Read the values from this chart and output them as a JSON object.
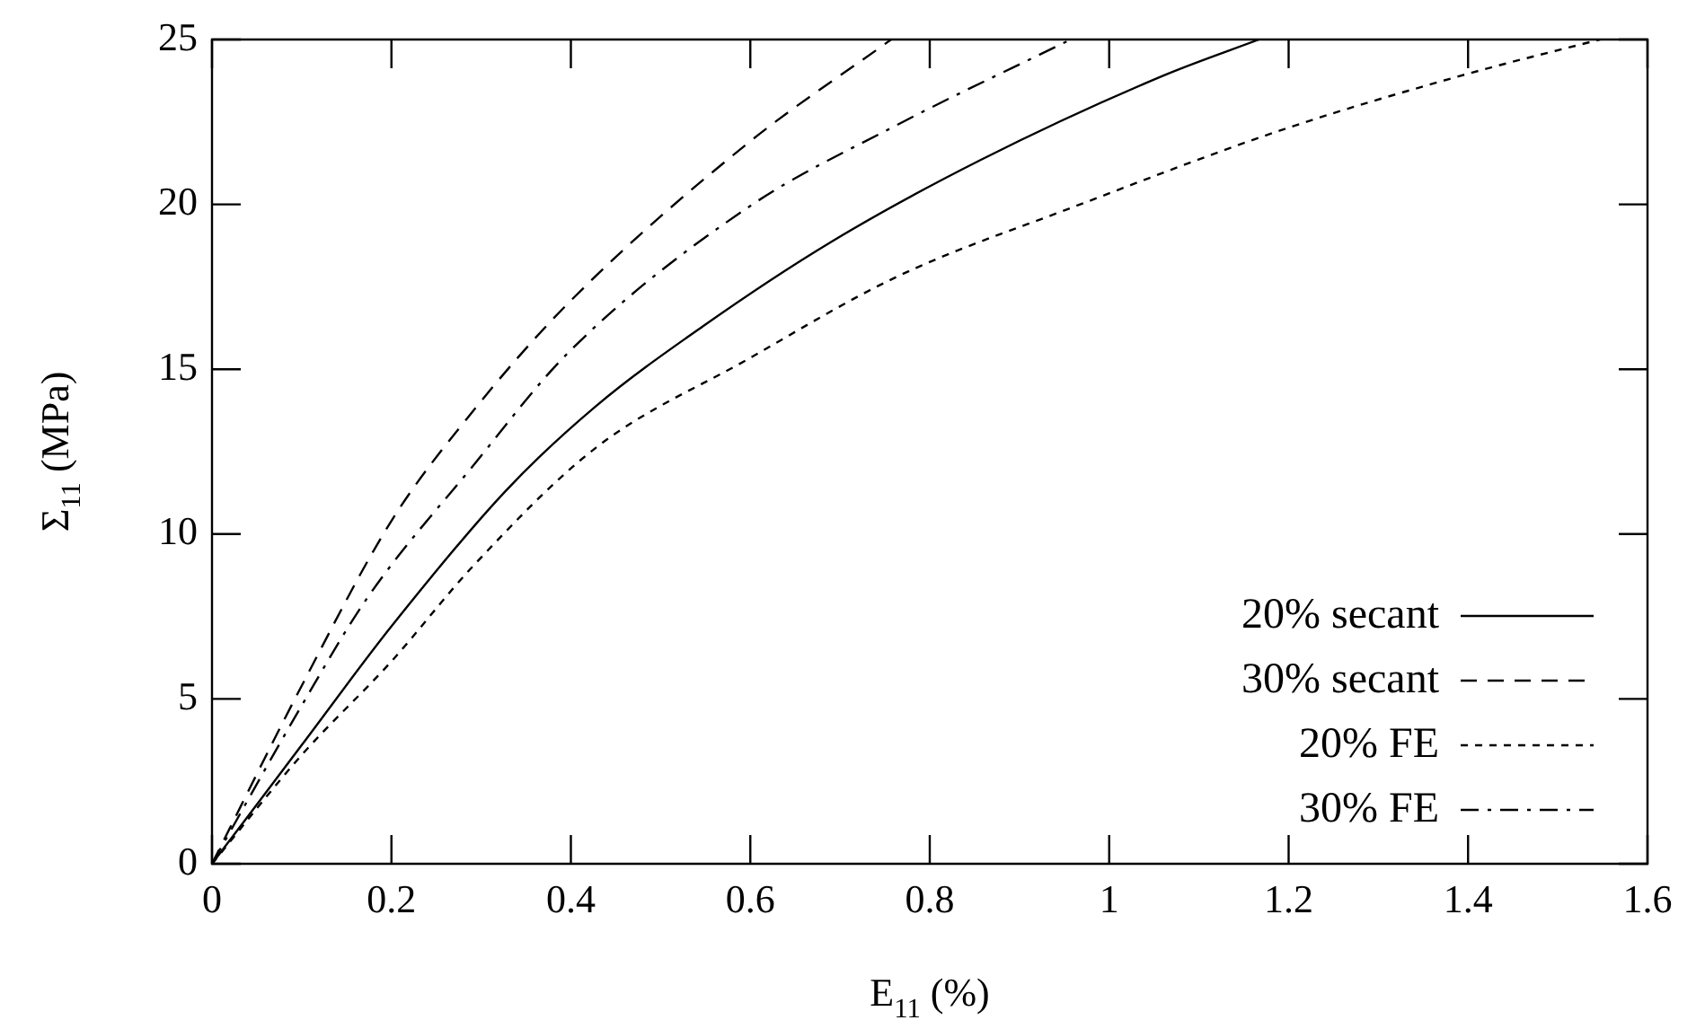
{
  "chart_data": {
    "type": "line",
    "xlabel": "E$_{11}$ (%)",
    "ylabel": "Σ$_{11}$ (MPa)",
    "xlim": [
      0,
      1.6
    ],
    "xticks": [
      0,
      0.2,
      0.4,
      0.6,
      0.8,
      1,
      1.2,
      1.4,
      1.6
    ],
    "ylim": [
      0,
      25
    ],
    "yticks": [
      0,
      5,
      10,
      15,
      20,
      25
    ],
    "grid": false,
    "legend": "bottom right",
    "marker": "none",
    "series": [
      {
        "name": "20% secant",
        "color": "#000000",
        "line_style": "solid",
        "x": [
          0,
          0.1,
          0.2,
          0.327,
          0.427,
          0.547,
          0.69,
          0.857,
          1.06,
          1.167
        ],
        "values": [
          0,
          3.6,
          7.2,
          11.3,
          13.86,
          16.3,
          18.86,
          21.35,
          23.9,
          25.0
        ]
      },
      {
        "name": "30% secant",
        "color": "#000000",
        "line_style": "dashed",
        "x": [
          0,
          0.1,
          0.2,
          0.29,
          0.397,
          0.597,
          0.757
        ],
        "values": [
          0,
          5.4,
          10.4,
          13.7,
          17.0,
          21.85,
          25.0
        ]
      },
      {
        "name": "20% FE",
        "color": "#000000",
        "line_style": "dotted",
        "x": [
          0,
          0.1,
          0.2,
          0.29,
          0.427,
          0.597,
          0.763,
          0.963,
          1.197,
          1.397,
          1.547
        ],
        "values": [
          0,
          3.3,
          6.14,
          9.0,
          12.6,
          15.3,
          17.8,
          19.95,
          22.3,
          23.94,
          25.0
        ]
      },
      {
        "name": "30% FE",
        "color": "#000000",
        "line_style": "dashdot",
        "x": [
          0,
          0.1,
          0.173,
          0.29,
          0.397,
          0.597,
          0.763,
          0.957
        ],
        "values": [
          0,
          4.8,
          8.06,
          12.04,
          15.5,
          19.9,
          22.4,
          25.0
        ]
      }
    ]
  }
}
